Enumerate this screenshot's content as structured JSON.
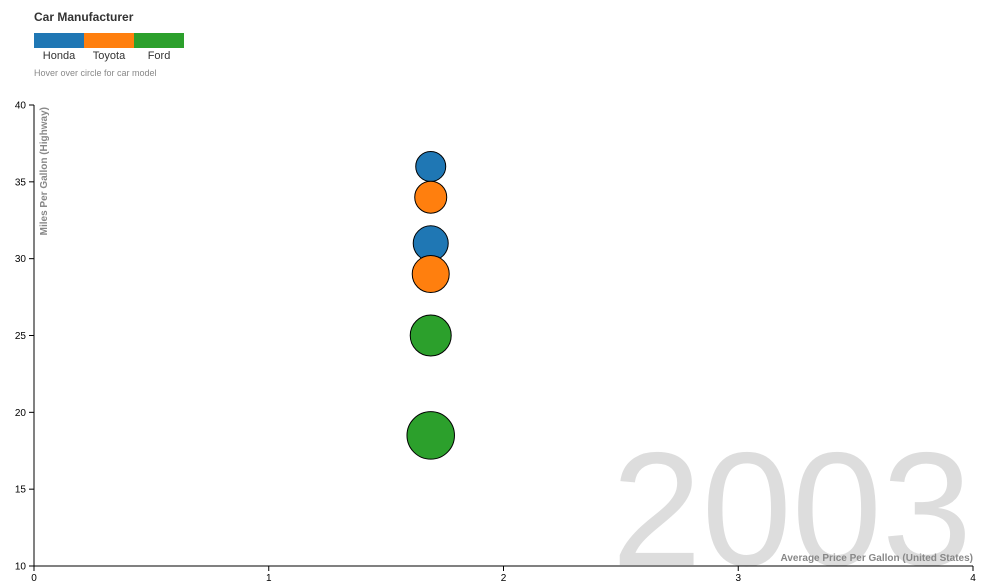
{
  "legend": {
    "title": "Car Manufacturer",
    "hint": "Hover over circle for car model",
    "items": [
      {
        "label": "Honda",
        "color": "#1f77b4"
      },
      {
        "label": "Toyota",
        "color": "#ff7f0e"
      },
      {
        "label": "Ford",
        "color": "#2ca02c"
      }
    ]
  },
  "chart_data": {
    "type": "scatter",
    "year": "2003",
    "xlabel": "Average Price Per Gallon (United States)",
    "ylabel": "Miles Per Gallon (Highway)",
    "xlim": [
      0,
      4
    ],
    "ylim": [
      10,
      40
    ],
    "x_ticks": [
      0,
      1,
      2,
      3,
      4
    ],
    "y_ticks": [
      10,
      15,
      20,
      25,
      30,
      35,
      40
    ],
    "series": [
      {
        "name": "Honda",
        "color": "#1f77b4",
        "points": [
          {
            "x": 1.69,
            "y": 36
          },
          {
            "x": 1.69,
            "y": 31
          }
        ]
      },
      {
        "name": "Toyota",
        "color": "#ff7f0e",
        "points": [
          {
            "x": 1.69,
            "y": 34
          },
          {
            "x": 1.69,
            "y": 29
          }
        ]
      },
      {
        "name": "Ford",
        "color": "#2ca02c",
        "points": [
          {
            "x": 1.69,
            "y": 25
          },
          {
            "x": 1.69,
            "y": 18.5
          }
        ]
      }
    ]
  }
}
